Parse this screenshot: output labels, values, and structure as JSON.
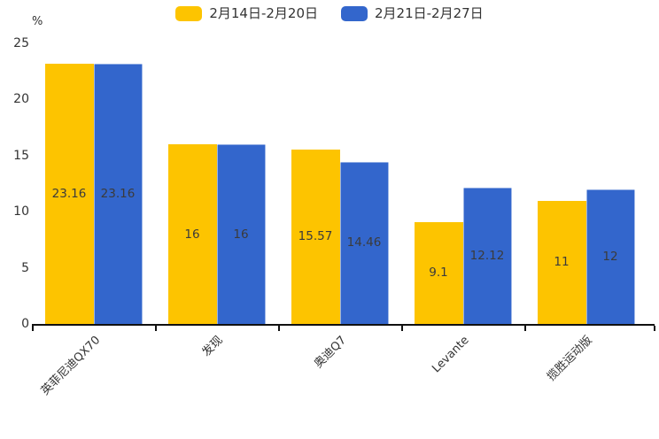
{
  "chart": {
    "unit_label": "%",
    "colors": {
      "series_yellow": "#FDC400",
      "series_blue": "#3366CC",
      "axis": "#111111",
      "text": "#333333",
      "value_label": "#3b3b3b",
      "background": "#ffffff"
    }
  },
  "chart_data": {
    "type": "bar",
    "title": "",
    "xlabel": "",
    "ylabel": "%",
    "categories": [
      "英菲尼迪QX70",
      "发现",
      "奥迪Q7",
      "Levante",
      "揽胜运动版"
    ],
    "series": [
      {
        "name": "2月14日-2月20日",
        "color": "#FDC400",
        "values": [
          23.16,
          16,
          15.57,
          9.1,
          11
        ]
      },
      {
        "name": "2月21日-2月27日",
        "color": "#3366CC",
        "values": [
          23.16,
          16,
          14.46,
          12.12,
          12
        ]
      }
    ],
    "value_labels": [
      "23.16",
      "23.16",
      "16",
      "16",
      "15.57",
      "14.46",
      "9.1",
      "12.12",
      "11",
      "12"
    ],
    "ylim": [
      0,
      25
    ],
    "yticks": [
      0,
      5,
      10,
      15,
      20,
      25
    ],
    "grid": false,
    "legend_position": "top-center",
    "value_label_position": "inside-center",
    "xlabel_rotation_deg": 45
  }
}
